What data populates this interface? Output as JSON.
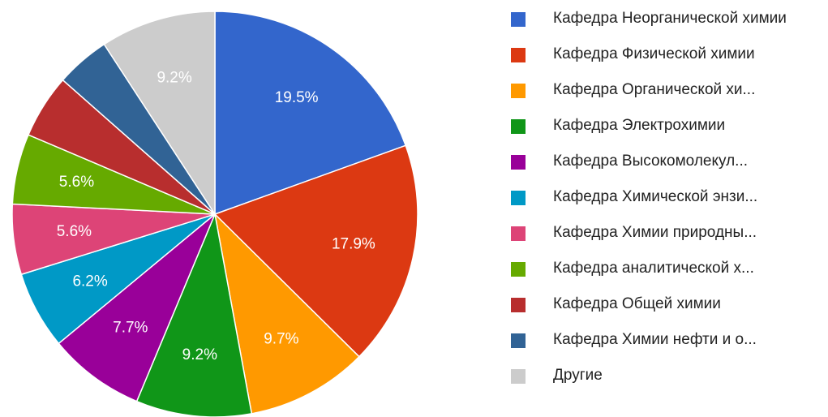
{
  "chart_data": {
    "type": "pie",
    "categories": [
      "Кафедра Неорганической химии",
      "Кафедра Физической химии",
      "Кафедра Органической хи...",
      "Кафедра Электрохимии",
      "Кафедра Высокомолекул...",
      "Кафедра Химической энзи...",
      "Кафедра Химии природны...",
      "Кафедра аналитической х...",
      "Кафедра Общей химии",
      "Кафедра Химии нефти и о...",
      "Другие"
    ],
    "values": [
      19.5,
      17.9,
      9.7,
      9.2,
      7.7,
      6.2,
      5.6,
      5.6,
      5.1,
      4.3,
      9.2
    ],
    "value_labels": [
      "19.5%",
      "17.9%",
      "9.7%",
      "9.2%",
      "7.7%",
      "6.2%",
      "5.6%",
      "5.6%",
      null,
      null,
      "9.2%"
    ],
    "colors": [
      "#3366cc",
      "#dc3912",
      "#ff9900",
      "#109618",
      "#990099",
      "#0099c6",
      "#dd4477",
      "#66aa00",
      "#b82e2e",
      "#316395",
      "#cccccc"
    ],
    "legend": "right"
  }
}
